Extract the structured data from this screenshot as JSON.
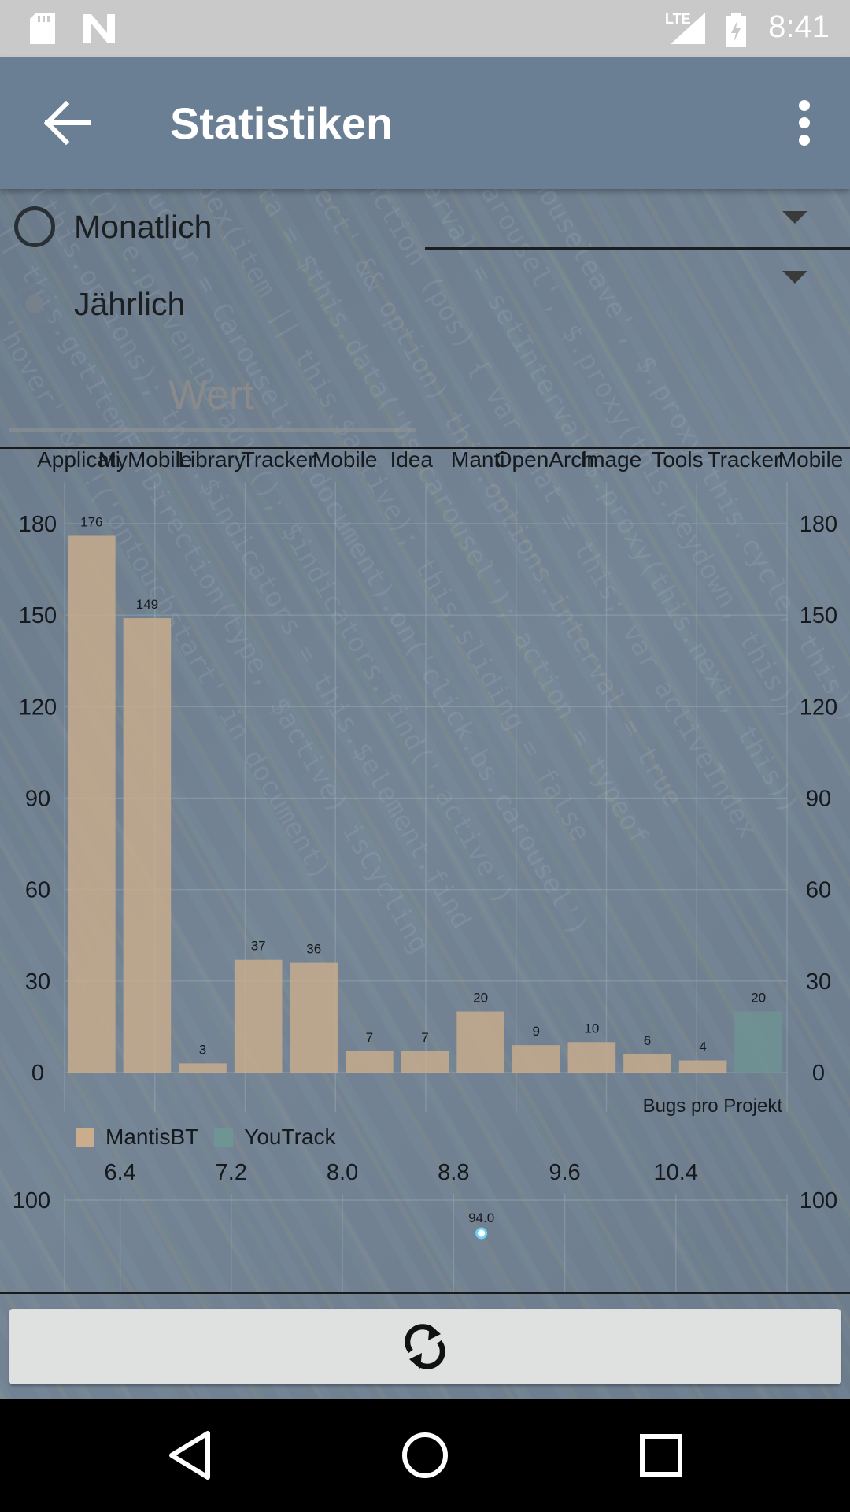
{
  "status_bar": {
    "time": "8:41",
    "network": "LTE",
    "icons": [
      "sd-card-icon",
      "n-logo-icon",
      "signal-icon",
      "battery-charging-icon"
    ]
  },
  "app_bar": {
    "title": "Statistiken",
    "back_icon": "arrow-back-icon",
    "menu_icon": "more-vert-icon"
  },
  "filters": {
    "monthly_label": "Monatlich",
    "yearly_label": "Jährlich",
    "selected": "Jährlich",
    "value_placeholder": "Wert"
  },
  "chart_data": [
    {
      "type": "bar",
      "categories": [
        "Application",
        "MyMobileLibrary",
        "—",
        "Tracker",
        "MobileIdea",
        "—",
        "Mantis",
        "OpenArchive",
        "—",
        "ImageTools",
        "—",
        "UnitTracker",
        "Mobile"
      ],
      "category_labels_visible": [
        "Applicati",
        "MyMobile",
        "Library",
        "Tracker",
        "Mobile",
        "Idea",
        "Manti",
        "OpenArch",
        "Image",
        "Tools",
        "Tracker",
        "Mobile"
      ],
      "series": [
        {
          "name": "MantisBT",
          "color": "#c9ad8c",
          "values": [
            176,
            149,
            3,
            37,
            36,
            7,
            7,
            20,
            9,
            10,
            6,
            4,
            null
          ]
        },
        {
          "name": "YouTrack",
          "color": "#6f9494",
          "values": [
            null,
            null,
            null,
            null,
            null,
            null,
            null,
            null,
            null,
            null,
            null,
            null,
            20
          ]
        }
      ],
      "data_labels": [
        "176",
        "149",
        "3",
        "37",
        "36",
        "7",
        "7",
        "20",
        "9",
        "10",
        "6",
        "4",
        "20"
      ],
      "ylim": [
        0,
        180
      ],
      "y_ticks": [
        "0",
        "30",
        "60",
        "90",
        "120",
        "150",
        "180"
      ],
      "description": "Bugs pro Projekt",
      "grid": true,
      "legend_position": "bottom-left"
    },
    {
      "type": "scatter",
      "x_ticks": [
        "6.4",
        "7.2",
        "8.0",
        "8.8",
        "9.6",
        "10.4"
      ],
      "y_ticks": [
        "100"
      ],
      "points": [
        {
          "x": 9.0,
          "y": 94.0,
          "label": "94.0"
        }
      ],
      "grid": true
    }
  ],
  "reload_button": {
    "icon": "refresh-icon"
  },
  "nav_bar": {
    "back": "nav-back-icon",
    "home": "nav-home-icon",
    "recents": "nav-recents-icon"
  }
}
